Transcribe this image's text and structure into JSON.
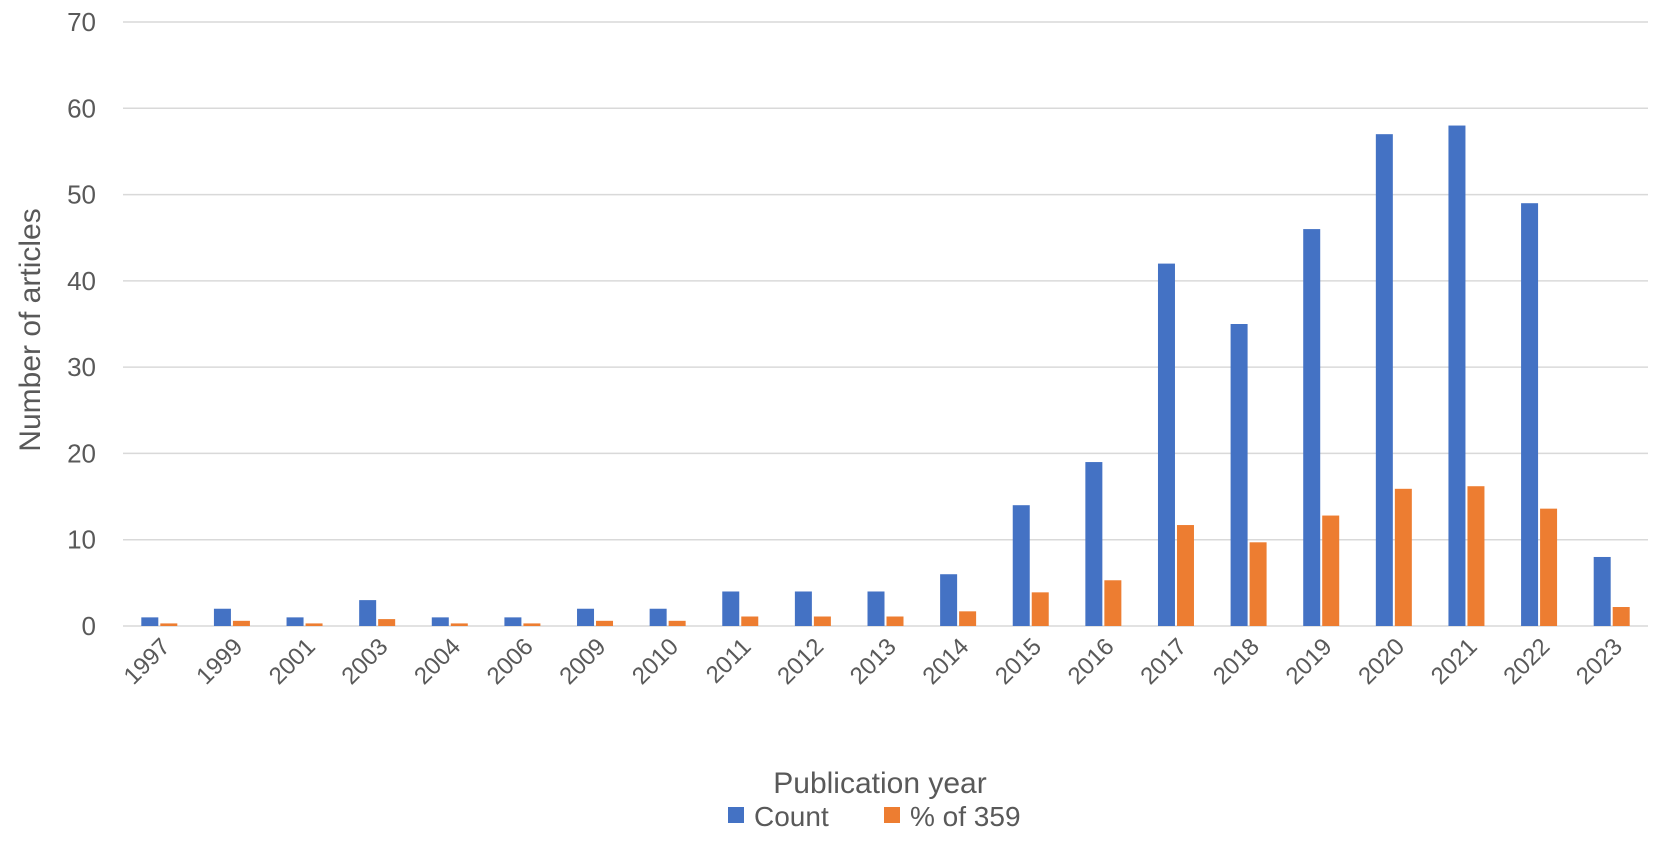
{
  "chart_data": {
    "type": "bar",
    "categories": [
      "1997",
      "1999",
      "2001",
      "2003",
      "2004",
      "2006",
      "2009",
      "2010",
      "2011",
      "2012",
      "2013",
      "2014",
      "2015",
      "2016",
      "2017",
      "2018",
      "2019",
      "2020",
      "2021",
      "2022",
      "2023"
    ],
    "series": [
      {
        "name": "Count",
        "color": "#4472c4",
        "values": [
          1,
          2,
          1,
          3,
          1,
          1,
          2,
          2,
          4,
          4,
          4,
          6,
          14,
          19,
          42,
          35,
          46,
          57,
          58,
          49,
          8
        ]
      },
      {
        "name": "% of 359",
        "color": "#ed7d31",
        "values": [
          0.3,
          0.6,
          0.3,
          0.8,
          0.3,
          0.3,
          0.6,
          0.6,
          1.1,
          1.1,
          1.1,
          1.7,
          3.9,
          5.3,
          11.7,
          9.7,
          12.8,
          15.9,
          16.2,
          13.6,
          2.2
        ]
      }
    ],
    "xlabel": "Publication year",
    "ylabel": "Number  of articles",
    "ylim": [
      0,
      70
    ],
    "yticks": [
      0,
      10,
      20,
      30,
      40,
      50,
      60,
      70
    ],
    "grid": true,
    "legend_position": "bottom"
  }
}
